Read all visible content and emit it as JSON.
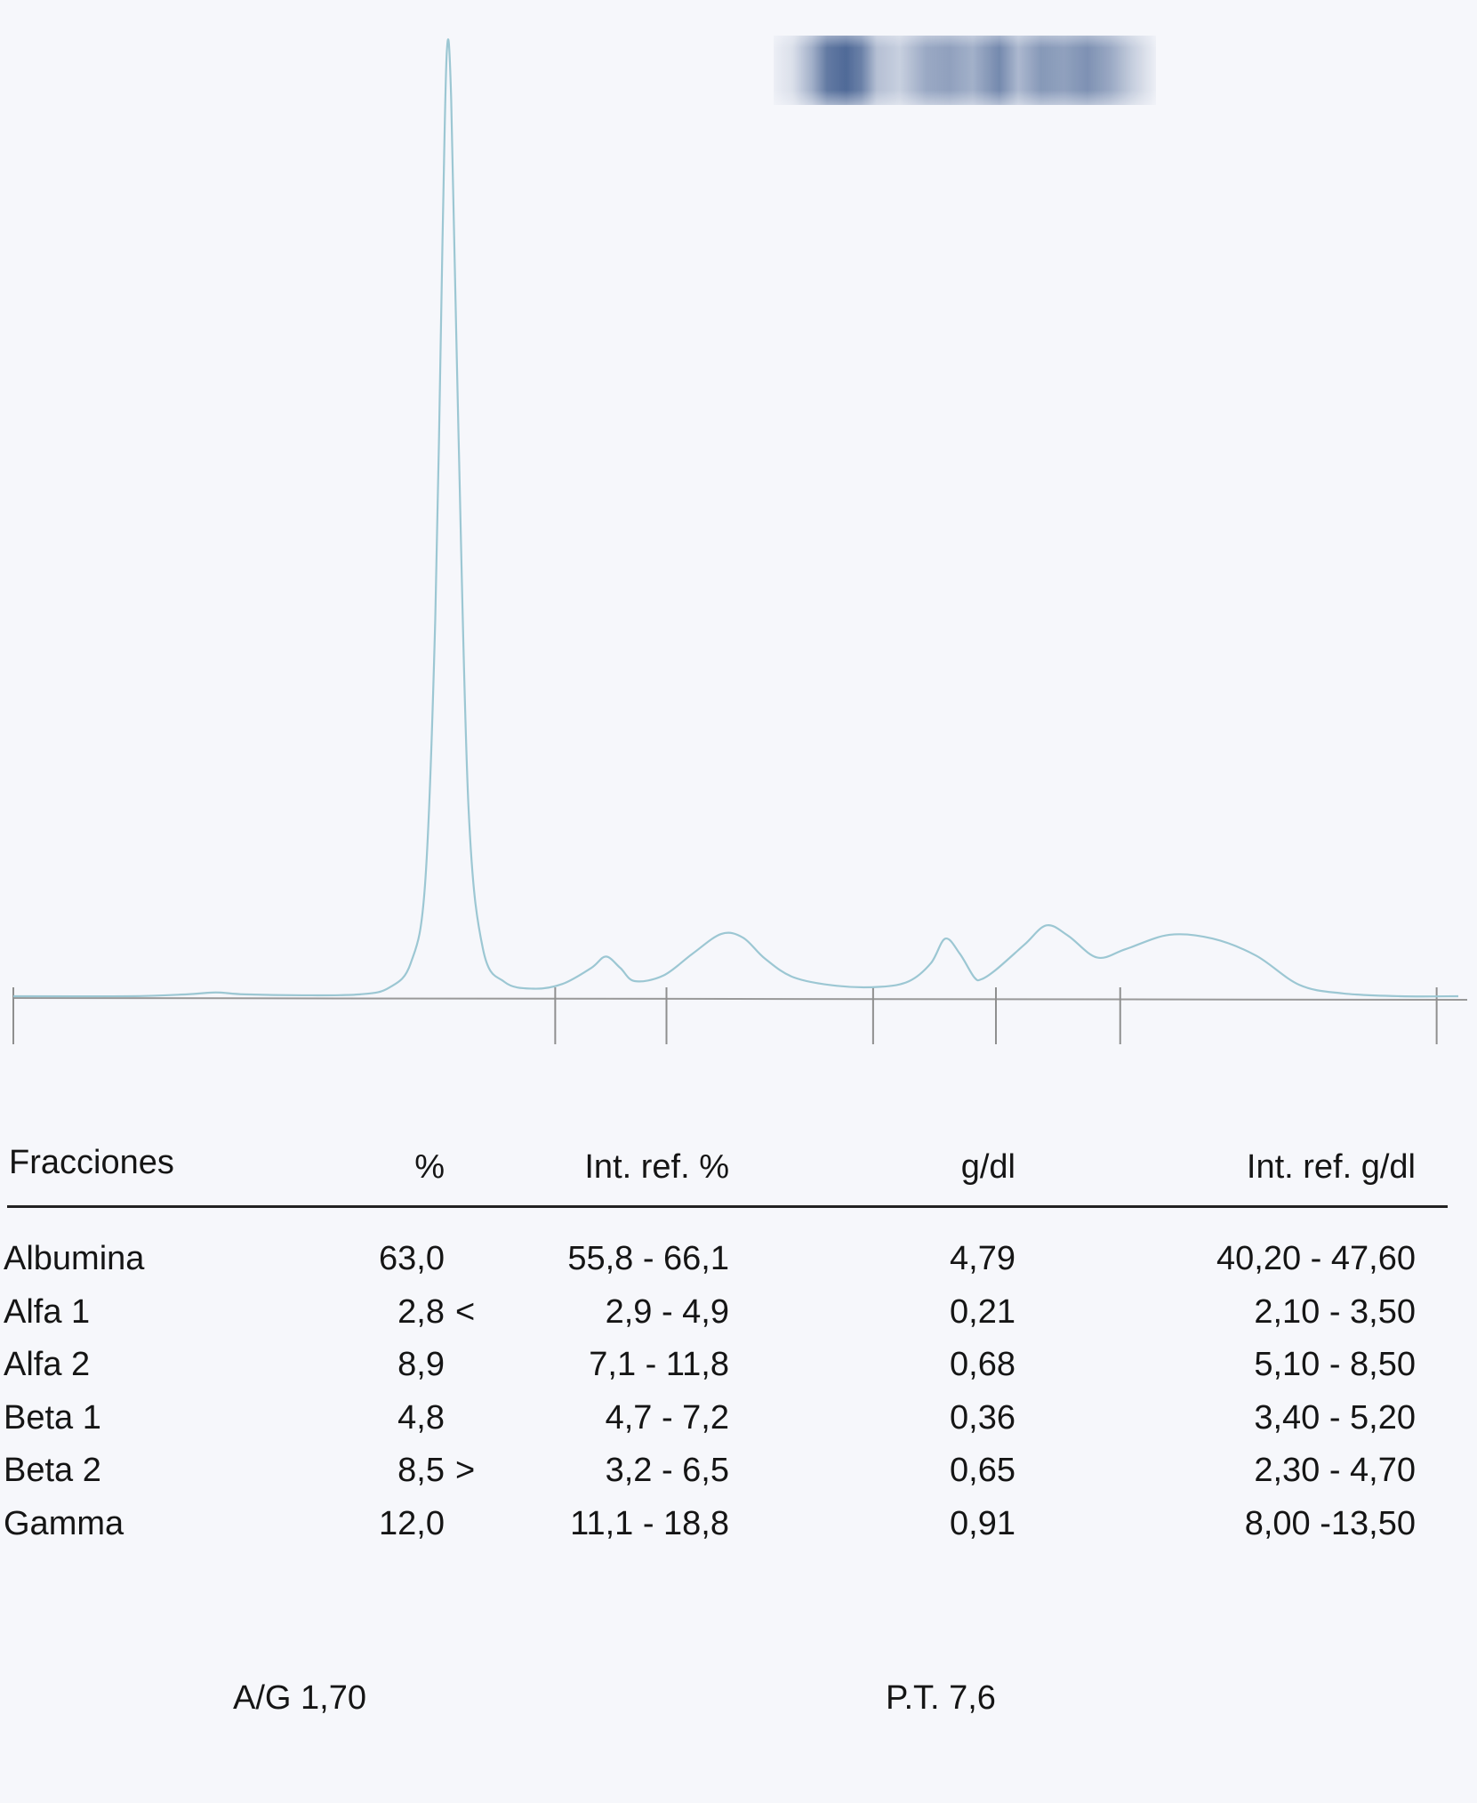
{
  "chart_data": {
    "type": "line",
    "title": "",
    "xlabel": "",
    "ylabel": "",
    "trace": [
      [
        0,
        0.0
      ],
      [
        8,
        0.0
      ],
      [
        12,
        0.2
      ],
      [
        14,
        0.4
      ],
      [
        16,
        0.2
      ],
      [
        20,
        0.1
      ],
      [
        24,
        0.2
      ],
      [
        26,
        0.9
      ],
      [
        27.5,
        3.5
      ],
      [
        28.5,
        12.0
      ],
      [
        29.2,
        40.0
      ],
      [
        29.7,
        80.0
      ],
      [
        30.0,
        100.0
      ],
      [
        30.3,
        95.0
      ],
      [
        30.8,
        60.0
      ],
      [
        31.5,
        20.0
      ],
      [
        32.5,
        5.0
      ],
      [
        34,
        1.5
      ],
      [
        36,
        0.8
      ],
      [
        38,
        1.3
      ],
      [
        40,
        3.0
      ],
      [
        41,
        4.2
      ],
      [
        42,
        3.0
      ],
      [
        43,
        1.6
      ],
      [
        45,
        2.2
      ],
      [
        47,
        4.5
      ],
      [
        49,
        6.6
      ],
      [
        50.5,
        6.2
      ],
      [
        52,
        4.0
      ],
      [
        54,
        2.0
      ],
      [
        57,
        1.1
      ],
      [
        60,
        1.0
      ],
      [
        62,
        1.6
      ],
      [
        63.5,
        3.5
      ],
      [
        64.5,
        6.1
      ],
      [
        65.5,
        4.5
      ],
      [
        66.5,
        2.0
      ],
      [
        67,
        1.8
      ],
      [
        68,
        2.8
      ],
      [
        70,
        5.5
      ],
      [
        71.5,
        7.5
      ],
      [
        73,
        6.4
      ],
      [
        75,
        4.1
      ],
      [
        77,
        5.0
      ],
      [
        80,
        6.5
      ],
      [
        83,
        6.1
      ],
      [
        86,
        4.3
      ],
      [
        89,
        1.2
      ],
      [
        92,
        0.3
      ],
      [
        96,
        0.0
      ],
      [
        100,
        0.0
      ]
    ],
    "dividers": [
      0,
      37.5,
      45.2,
      59.5,
      68.0,
      76.6,
      98.5
    ],
    "ylim": [
      0,
      100
    ],
    "trace_color": "#9cc7d3",
    "baseline_color": "#999999"
  },
  "gel_strip": {
    "bands": [
      {
        "pos": 0.0,
        "intensity": 0.05
      },
      {
        "pos": 0.05,
        "intensity": 0.15
      },
      {
        "pos": 0.1,
        "intensity": 0.45
      },
      {
        "pos": 0.14,
        "intensity": 0.8
      },
      {
        "pos": 0.19,
        "intensity": 0.9
      },
      {
        "pos": 0.23,
        "intensity": 0.75
      },
      {
        "pos": 0.27,
        "intensity": 0.35
      },
      {
        "pos": 0.33,
        "intensity": 0.25
      },
      {
        "pos": 0.4,
        "intensity": 0.5
      },
      {
        "pos": 0.46,
        "intensity": 0.55
      },
      {
        "pos": 0.52,
        "intensity": 0.45
      },
      {
        "pos": 0.59,
        "intensity": 0.7
      },
      {
        "pos": 0.64,
        "intensity": 0.4
      },
      {
        "pos": 0.7,
        "intensity": 0.6
      },
      {
        "pos": 0.76,
        "intensity": 0.55
      },
      {
        "pos": 0.82,
        "intensity": 0.65
      },
      {
        "pos": 0.88,
        "intensity": 0.5
      },
      {
        "pos": 0.94,
        "intensity": 0.25
      },
      {
        "pos": 1.0,
        "intensity": 0.05
      }
    ],
    "color": "#3d5a8c"
  },
  "table": {
    "headers": {
      "fraction": "Fracciones",
      "percent": "%",
      "ref_percent": "Int. ref. %",
      "gdl": "g/dl",
      "ref_gdl": "Int. ref. g/dl"
    },
    "rows": [
      {
        "fraction": "Albumina",
        "percent": "63,0",
        "flag": "",
        "ref_percent": "55,8 - 66,1",
        "gdl": "4,79",
        "ref_gdl": "40,20 - 47,60"
      },
      {
        "fraction": "Alfa 1",
        "percent": "2,8",
        "flag": "<",
        "ref_percent": "2,9 - 4,9",
        "gdl": "0,21",
        "ref_gdl": "2,10 - 3,50"
      },
      {
        "fraction": "Alfa 2",
        "percent": "8,9",
        "flag": "",
        "ref_percent": "7,1 - 11,8",
        "gdl": "0,68",
        "ref_gdl": "5,10 - 8,50"
      },
      {
        "fraction": "Beta 1",
        "percent": "4,8",
        "flag": "",
        "ref_percent": "4,7 - 7,2",
        "gdl": "0,36",
        "ref_gdl": "3,40 - 5,20"
      },
      {
        "fraction": "Beta 2",
        "percent": "8,5",
        "flag": ">",
        "ref_percent": "3,2 - 6,5",
        "gdl": "0,65",
        "ref_gdl": "2,30 - 4,70"
      },
      {
        "fraction": "Gamma",
        "percent": "12,0",
        "flag": "",
        "ref_percent": "11,1 - 18,8",
        "gdl": "0,91",
        "ref_gdl": "8,00 -13,50"
      }
    ]
  },
  "footer": {
    "ag_ratio": "A/G 1,70",
    "total_protein": "P.T. 7,6"
  }
}
